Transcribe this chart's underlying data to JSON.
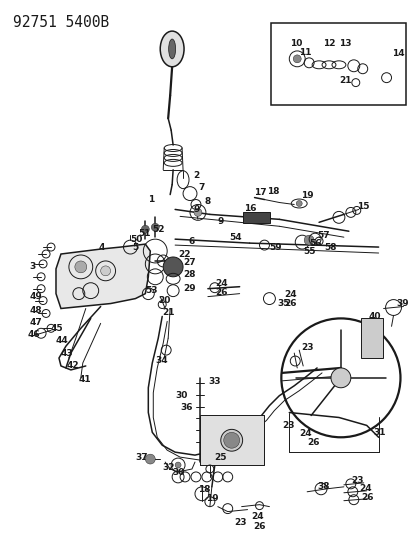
{
  "title": "92751 5400B",
  "bg_color": "#ffffff",
  "line_color": "#1a1a1a",
  "gray_dark": "#333333",
  "gray_mid": "#666666",
  "gray_light": "#aaaaaa",
  "gray_fill": "#cccccc",
  "title_fontsize": 10.5,
  "label_fontsize": 6.5,
  "fig_width": 4.14,
  "fig_height": 5.33,
  "dpi": 100
}
